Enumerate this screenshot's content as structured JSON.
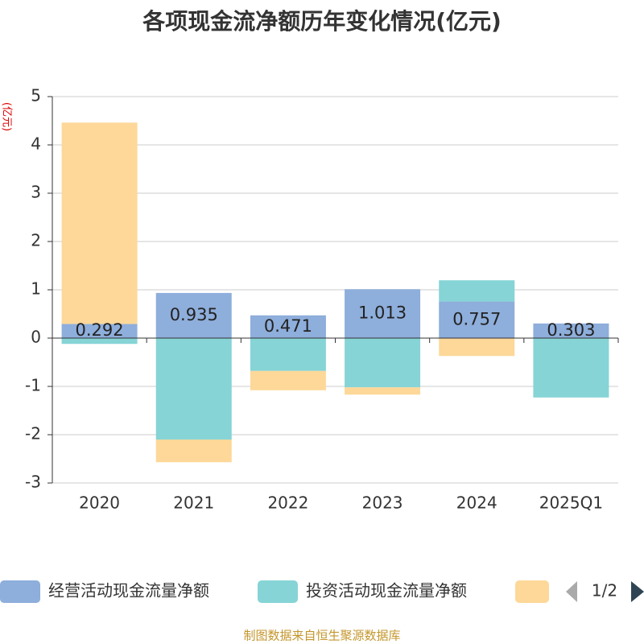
{
  "chart_data": {
    "type": "bar",
    "stacked": true,
    "title": "各项现金流净额历年变化情况(亿元)",
    "y_label": "(亿元)",
    "categories": [
      "2020",
      "2021",
      "2022",
      "2023",
      "2024",
      "2025Q1"
    ],
    "series": [
      {
        "name": "经营活动现金流量净额",
        "color": "#8eaedb",
        "values": [
          0.292,
          0.935,
          0.471,
          1.013,
          0.757,
          0.303
        ],
        "labels": true
      },
      {
        "name": "投资活动现金流量净额",
        "color": "#86d4d6",
        "values": [
          -0.12,
          -2.1,
          -0.68,
          -1.02,
          0.44,
          -1.23
        ]
      },
      {
        "color": "#fdd899",
        "values": [
          4.17,
          -0.47,
          -0.4,
          -0.15,
          -0.37,
          null
        ]
      }
    ],
    "ylim": [
      -3,
      5
    ],
    "yticks": [
      -3,
      -2,
      -1,
      0,
      1,
      2,
      3,
      4,
      5
    ],
    "grid": true,
    "legend_page": "1/2",
    "source": "制图数据来自恒生聚源数据库"
  }
}
